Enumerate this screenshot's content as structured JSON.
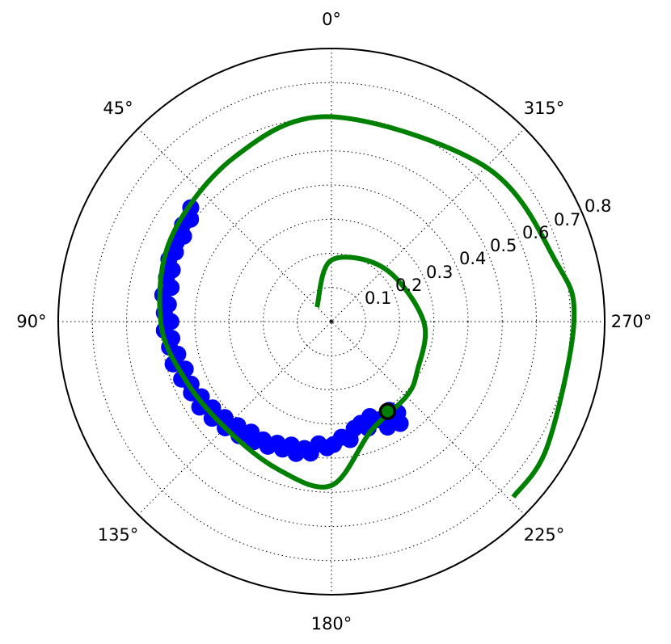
{
  "chart_data": {
    "type": "scatter",
    "projection": "polar",
    "theta_zero_location": "top",
    "theta_direction": "counterclockwise",
    "theta_unit": "degrees",
    "rlim": [
      0,
      0.8
    ],
    "r_ticks": [
      "0.1",
      "0.2",
      "0.3",
      "0.4",
      "0.5",
      "0.6",
      "0.7",
      "0.8"
    ],
    "theta_ticks": [
      "0°",
      "45°",
      "90°",
      "135°",
      "180°",
      "225°",
      "270°",
      "315°"
    ],
    "grid": true,
    "series": [
      {
        "kind": "line",
        "color": "#008000",
        "points": [
          {
            "theta": 45,
            "r": 0.06
          },
          {
            "theta": 0,
            "r": 0.18
          },
          {
            "theta": 315,
            "r": 0.22
          },
          {
            "theta": 270,
            "r": 0.27
          },
          {
            "theta": 240,
            "r": 0.29
          },
          {
            "theta": 225,
            "r": 0.31
          },
          {
            "theta": 200,
            "r": 0.34
          },
          {
            "theta": 180,
            "r": 0.48
          },
          {
            "theta": 160,
            "r": 0.46
          },
          {
            "theta": 135,
            "r": 0.44
          },
          {
            "theta": 112,
            "r": 0.46
          },
          {
            "theta": 90,
            "r": 0.5
          },
          {
            "theta": 62,
            "r": 0.53
          },
          {
            "theta": 30,
            "r": 0.56
          },
          {
            "theta": 0,
            "r": 0.6
          },
          {
            "theta": 315,
            "r": 0.64
          },
          {
            "theta": 285,
            "r": 0.68
          },
          {
            "theta": 270,
            "r": 0.71
          },
          {
            "theta": 240,
            "r": 0.73
          },
          {
            "theta": 226,
            "r": 0.74
          }
        ]
      },
      {
        "kind": "scatter",
        "color": "#0000ff",
        "points": [
          {
            "theta": 213,
            "r": 0.31
          },
          {
            "theta": 210,
            "r": 0.33
          },
          {
            "theta": 216,
            "r": 0.33
          },
          {
            "theta": 208,
            "r": 0.35
          },
          {
            "theta": 214,
            "r": 0.36
          },
          {
            "theta": 206,
            "r": 0.32
          },
          {
            "theta": 202,
            "r": 0.3
          },
          {
            "theta": 199,
            "r": 0.33
          },
          {
            "theta": 196,
            "r": 0.31
          },
          {
            "theta": 192,
            "r": 0.32
          },
          {
            "theta": 189,
            "r": 0.35
          },
          {
            "theta": 185,
            "r": 0.34
          },
          {
            "theta": 181,
            "r": 0.36
          },
          {
            "theta": 178,
            "r": 0.37
          },
          {
            "theta": 174,
            "r": 0.36
          },
          {
            "theta": 171,
            "r": 0.39
          },
          {
            "theta": 168,
            "r": 0.38
          },
          {
            "theta": 165,
            "r": 0.4
          },
          {
            "theta": 162,
            "r": 0.38
          },
          {
            "theta": 159,
            "r": 0.4
          },
          {
            "theta": 156,
            "r": 0.39
          },
          {
            "theta": 153,
            "r": 0.41
          },
          {
            "theta": 150,
            "r": 0.4
          },
          {
            "theta": 147,
            "r": 0.42
          },
          {
            "theta": 144,
            "r": 0.4
          },
          {
            "theta": 141,
            "r": 0.43
          },
          {
            "theta": 138,
            "r": 0.41
          },
          {
            "theta": 135,
            "r": 0.44
          },
          {
            "theta": 132,
            "r": 0.42
          },
          {
            "theta": 129,
            "r": 0.45
          },
          {
            "theta": 126,
            "r": 0.43
          },
          {
            "theta": 123,
            "r": 0.46
          },
          {
            "theta": 120,
            "r": 0.44
          },
          {
            "theta": 117,
            "r": 0.46
          },
          {
            "theta": 114,
            "r": 0.45
          },
          {
            "theta": 111,
            "r": 0.47
          },
          {
            "theta": 108,
            "r": 0.45
          },
          {
            "theta": 105,
            "r": 0.48
          },
          {
            "theta": 102,
            "r": 0.46
          },
          {
            "theta": 99,
            "r": 0.48
          },
          {
            "theta": 96,
            "r": 0.47
          },
          {
            "theta": 93,
            "r": 0.49
          },
          {
            "theta": 90,
            "r": 0.47
          },
          {
            "theta": 87,
            "r": 0.49
          },
          {
            "theta": 84,
            "r": 0.48
          },
          {
            "theta": 81,
            "r": 0.5
          },
          {
            "theta": 78,
            "r": 0.48
          },
          {
            "theta": 75,
            "r": 0.5
          },
          {
            "theta": 72,
            "r": 0.49
          },
          {
            "theta": 69,
            "r": 0.51
          },
          {
            "theta": 66,
            "r": 0.5
          },
          {
            "theta": 63,
            "r": 0.51
          },
          {
            "theta": 60,
            "r": 0.5
          },
          {
            "theta": 57,
            "r": 0.52
          },
          {
            "theta": 54,
            "r": 0.51
          },
          {
            "theta": 51,
            "r": 0.53
          }
        ]
      },
      {
        "kind": "marker",
        "color": "#008000",
        "edgecolor": "#000000",
        "points": [
          {
            "theta": 212,
            "r": 0.31
          }
        ]
      }
    ]
  }
}
